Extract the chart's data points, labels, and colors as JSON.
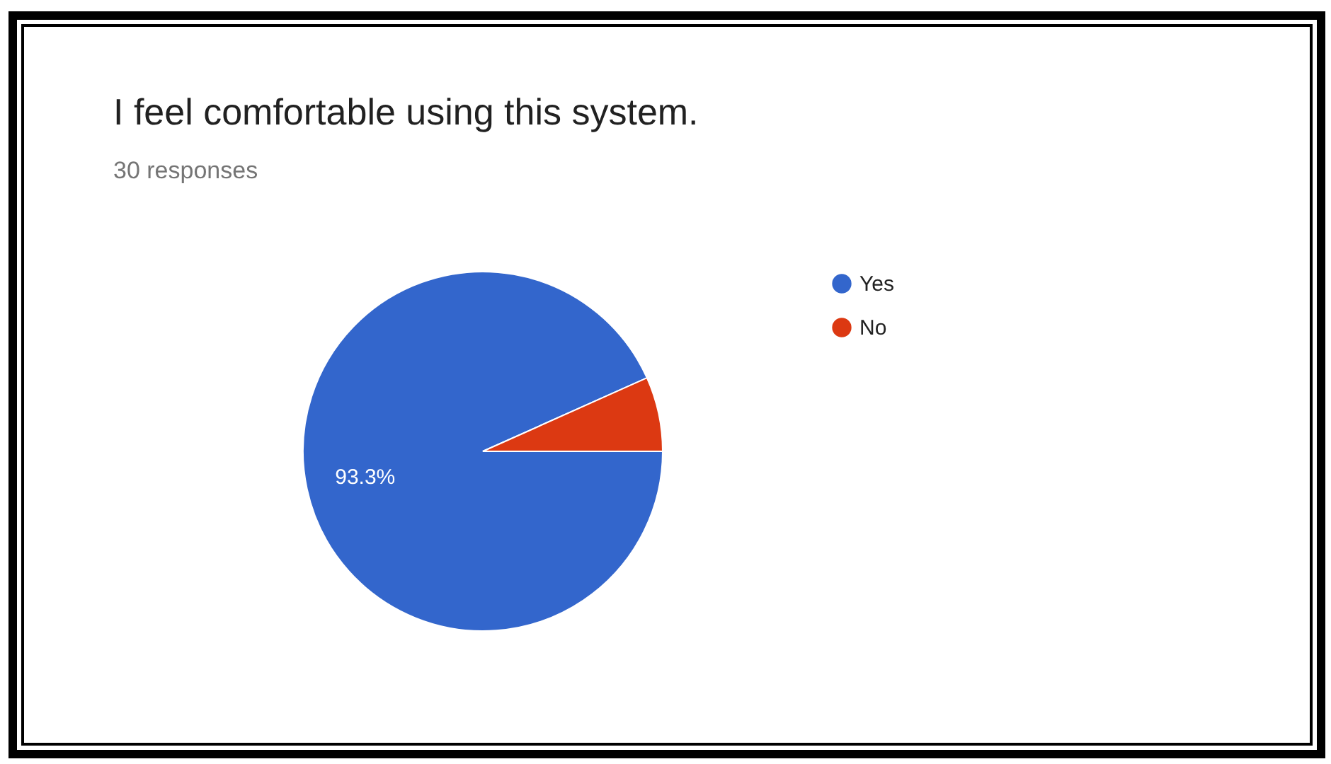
{
  "chart_data": {
    "type": "pie",
    "title": "I feel comfortable using this system.",
    "subtitle": "30 responses",
    "categories": [
      "Yes",
      "No"
    ],
    "values": [
      93.3,
      6.7
    ],
    "colors": [
      "#3366cc",
      "#dc3912"
    ],
    "value_labels": [
      "93.3%",
      null
    ],
    "legend": "right"
  }
}
